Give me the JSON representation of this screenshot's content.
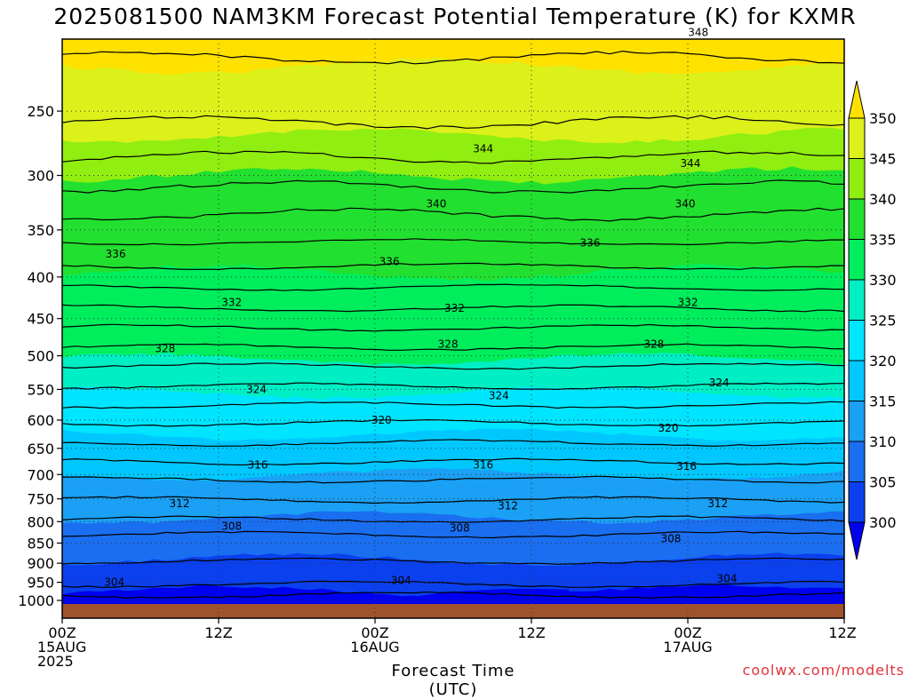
{
  "header": {
    "title": "2025081500 NAM3KM Forecast Potential Temperature (K) for KXMR"
  },
  "footer": {
    "credit": "coolwx.com/modelts"
  },
  "chart_data": {
    "type": "heatmap",
    "title": "2025081500 NAM3KM Forecast Potential Temperature (K) for KXMR",
    "xlabel": "Forecast Time (UTC)",
    "ylabel": "",
    "x_ticks": [
      {
        "hour": 0,
        "lines": [
          "00Z",
          "15AUG",
          "2025"
        ]
      },
      {
        "hour": 12,
        "lines": [
          "12Z"
        ]
      },
      {
        "hour": 24,
        "lines": [
          "00Z",
          "16AUG"
        ]
      },
      {
        "hour": 36,
        "lines": [
          "12Z"
        ]
      },
      {
        "hour": 48,
        "lines": [
          "00Z",
          "17AUG"
        ]
      },
      {
        "hour": 60,
        "lines": [
          "12Z"
        ]
      }
    ],
    "x_range_hours": [
      0,
      60
    ],
    "y_axis_pressure_hpa": [
      1000,
      950,
      900,
      850,
      800,
      750,
      700,
      650,
      600,
      550,
      500,
      450,
      400,
      350,
      300,
      250
    ],
    "colorbar": {
      "levels": [
        300,
        305,
        310,
        315,
        320,
        325,
        330,
        335,
        340,
        345,
        350
      ],
      "labels": [
        "300",
        "305",
        "310",
        "315",
        "320",
        "325",
        "330",
        "335",
        "340",
        "345",
        "350"
      ],
      "colors": [
        "#0000f0",
        "#0a40ee",
        "#1a6ef0",
        "#1aa0f5",
        "#00c8ff",
        "#00e5ff",
        "#00eec4",
        "#00ee5c",
        "#22e030",
        "#90ee10",
        "#dcf01a",
        "#ffe100"
      ]
    },
    "contour_labels": [
      {
        "value": "348",
        "hour": 10.5,
        "p": 180
      },
      {
        "value": "348",
        "hour": 48.8,
        "p": 200
      },
      {
        "value": "344",
        "hour": 32.3,
        "p": 278
      },
      {
        "value": "344",
        "hour": 48.2,
        "p": 290
      },
      {
        "value": "340",
        "hour": 28.7,
        "p": 325
      },
      {
        "value": "340",
        "hour": 47.8,
        "p": 325
      },
      {
        "value": "336",
        "hour": 4.1,
        "p": 375
      },
      {
        "value": "336",
        "hour": 25.1,
        "p": 383
      },
      {
        "value": "336",
        "hour": 40.5,
        "p": 363
      },
      {
        "value": "332",
        "hour": 13.0,
        "p": 430
      },
      {
        "value": "332",
        "hour": 30.1,
        "p": 437
      },
      {
        "value": "332",
        "hour": 48.0,
        "p": 430
      },
      {
        "value": "328",
        "hour": 7.9,
        "p": 490
      },
      {
        "value": "328",
        "hour": 29.6,
        "p": 484
      },
      {
        "value": "328",
        "hour": 45.4,
        "p": 484
      },
      {
        "value": "324",
        "hour": 14.9,
        "p": 550
      },
      {
        "value": "324",
        "hour": 33.5,
        "p": 560
      },
      {
        "value": "324",
        "hour": 50.4,
        "p": 540
      },
      {
        "value": "320",
        "hour": 24.5,
        "p": 600
      },
      {
        "value": "320",
        "hour": 46.5,
        "p": 614
      },
      {
        "value": "316",
        "hour": 15.0,
        "p": 681
      },
      {
        "value": "316",
        "hour": 32.3,
        "p": 681
      },
      {
        "value": "316",
        "hour": 47.9,
        "p": 684
      },
      {
        "value": "312",
        "hour": 9.0,
        "p": 760
      },
      {
        "value": "312",
        "hour": 34.2,
        "p": 765
      },
      {
        "value": "312",
        "hour": 50.3,
        "p": 760
      },
      {
        "value": "308",
        "hour": 13.0,
        "p": 810
      },
      {
        "value": "308",
        "hour": 30.5,
        "p": 815
      },
      {
        "value": "308",
        "hour": 46.7,
        "p": 840
      },
      {
        "value": "304",
        "hour": 4.0,
        "p": 950
      },
      {
        "value": "304",
        "hour": 26.0,
        "p": 945
      },
      {
        "value": "304",
        "hour": 51.0,
        "p": 940
      }
    ]
  }
}
